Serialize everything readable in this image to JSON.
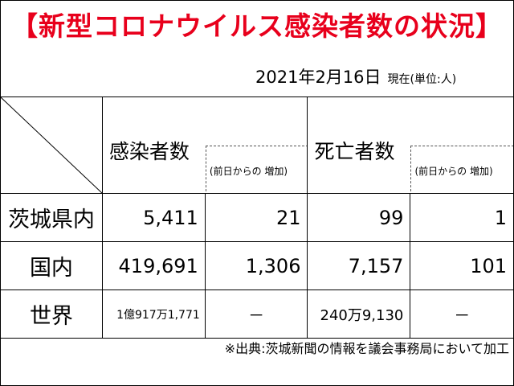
{
  "title": "【新型コロナウイルス感染者数の状況】",
  "date": "2021年2月16日",
  "as_of": "現在(単位:人)",
  "headers": {
    "infected": "感染者数",
    "infected_change": "(前日からの 増加)",
    "deaths": "死亡者数",
    "deaths_change": "(前日からの 増加)"
  },
  "rows": [
    {
      "label": "茨城県内",
      "infected": "5,411",
      "infected_change": "21",
      "deaths": "99",
      "deaths_change": "1"
    },
    {
      "label": "国内",
      "infected": "419,691",
      "infected_change": "1,306",
      "deaths": "7,157",
      "deaths_change": "101"
    },
    {
      "label": "世界",
      "infected": "1億917万1,771",
      "infected_change": "－",
      "deaths": "240万9,130",
      "deaths_change": "－"
    }
  ],
  "source": "※出典:茨城新聞の情報を議会事務局において加工",
  "colors": {
    "title": "#e8001c"
  }
}
